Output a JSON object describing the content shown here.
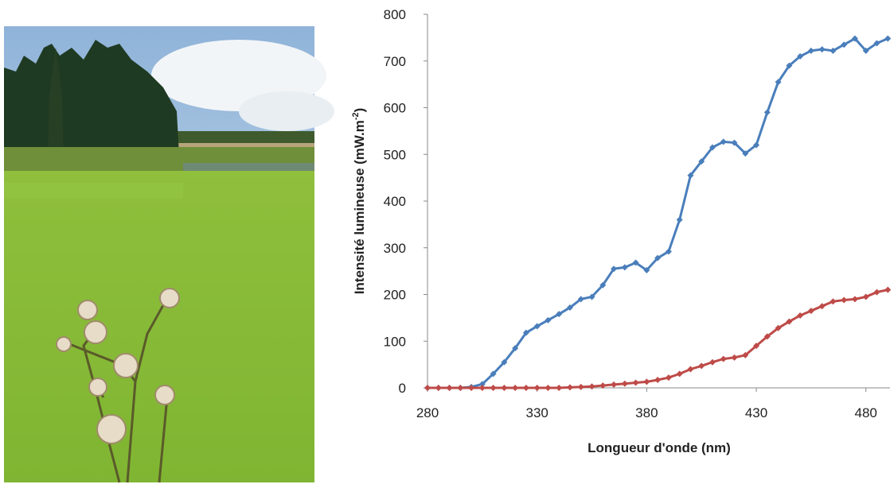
{
  "chart_data": {
    "type": "line",
    "x_label": "Longueur d'onde (nm)",
    "y_label_parts": [
      "Intensité lumineuse (mW.m",
      "-2",
      ")"
    ],
    "x": [
      280,
      285,
      290,
      295,
      300,
      305,
      310,
      315,
      320,
      325,
      330,
      335,
      340,
      345,
      350,
      355,
      360,
      365,
      370,
      375,
      380,
      385,
      390,
      395,
      400,
      405,
      410,
      415,
      420,
      425,
      430,
      435,
      440,
      445,
      450,
      455,
      460,
      465,
      470,
      475,
      480,
      485,
      490
    ],
    "series": [
      {
        "color": "#4a7ebb",
        "values": [
          0,
          0,
          0,
          0,
          2,
          8,
          30,
          55,
          85,
          118,
          132,
          145,
          158,
          172,
          190,
          195,
          220,
          255,
          258,
          268,
          252,
          278,
          292,
          360,
          455,
          485,
          515,
          527,
          525,
          502,
          520,
          590,
          655,
          690,
          710,
          722,
          725,
          722,
          735,
          748,
          722,
          738,
          748
        ]
      },
      {
        "color": "#be4b48",
        "values": [
          0,
          0,
          0,
          0,
          0,
          0,
          0,
          0,
          0,
          0,
          0,
          0,
          0,
          1,
          2,
          3,
          5,
          7,
          9,
          11,
          13,
          17,
          22,
          30,
          40,
          47,
          55,
          62,
          65,
          70,
          90,
          110,
          128,
          142,
          155,
          165,
          175,
          185,
          188,
          190,
          195,
          205,
          210
        ]
      }
    ],
    "xlim": [
      280,
      491
    ],
    "xticks": [
      280,
      330,
      380,
      430,
      480
    ],
    "ylim": [
      0,
      800
    ],
    "yticks": [
      0,
      100,
      200,
      300,
      400,
      500,
      600,
      700,
      800
    ],
    "grid": false,
    "markers": "diamond"
  }
}
